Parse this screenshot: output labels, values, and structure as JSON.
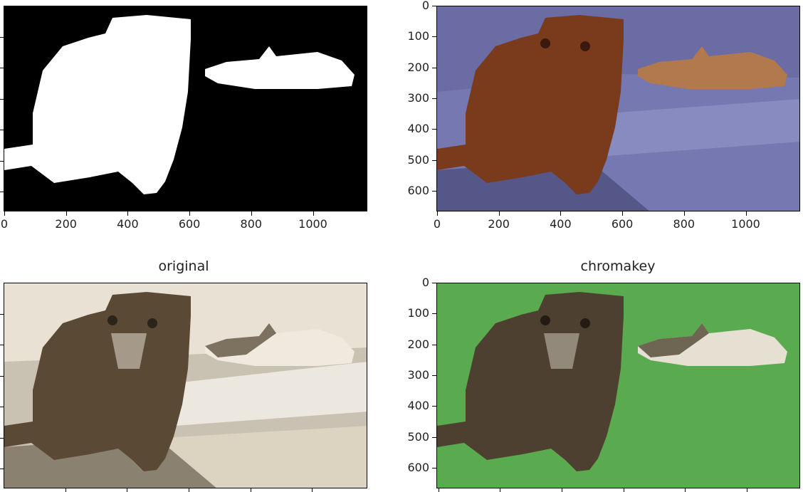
{
  "figure": {
    "panels": [
      {
        "id": "mask",
        "title": "",
        "image_description_icon": "binary-mask-image",
        "x_ticks": [
          "0",
          "200",
          "400",
          "600",
          "800",
          "1000"
        ],
        "y_ticks": []
      },
      {
        "id": "overlay",
        "title": "",
        "image_description_icon": "mask-overlay-image",
        "x_ticks": [
          "0",
          "200",
          "400",
          "600",
          "800",
          "1000"
        ],
        "y_ticks": [
          "0",
          "100",
          "200",
          "300",
          "400",
          "500",
          "600"
        ]
      },
      {
        "id": "original",
        "title": "original",
        "image_description_icon": "cat-photo-image",
        "x_ticks": [],
        "y_ticks": []
      },
      {
        "id": "chromakey",
        "title": "chromakey",
        "image_description_icon": "chromakey-image",
        "x_ticks": [],
        "y_ticks": [
          "0",
          "100",
          "200",
          "300",
          "400",
          "500",
          "600"
        ]
      }
    ],
    "colors": {
      "mask_fg": "#ffffff",
      "mask_bg": "#000000",
      "overlay_bg": "#5d5f94",
      "overlay_fg": "#7a3a1c",
      "chroma_green": "#5aab4f",
      "photo_bg": "#cfc6b4",
      "cat_brown": "#5a4a35"
    }
  }
}
